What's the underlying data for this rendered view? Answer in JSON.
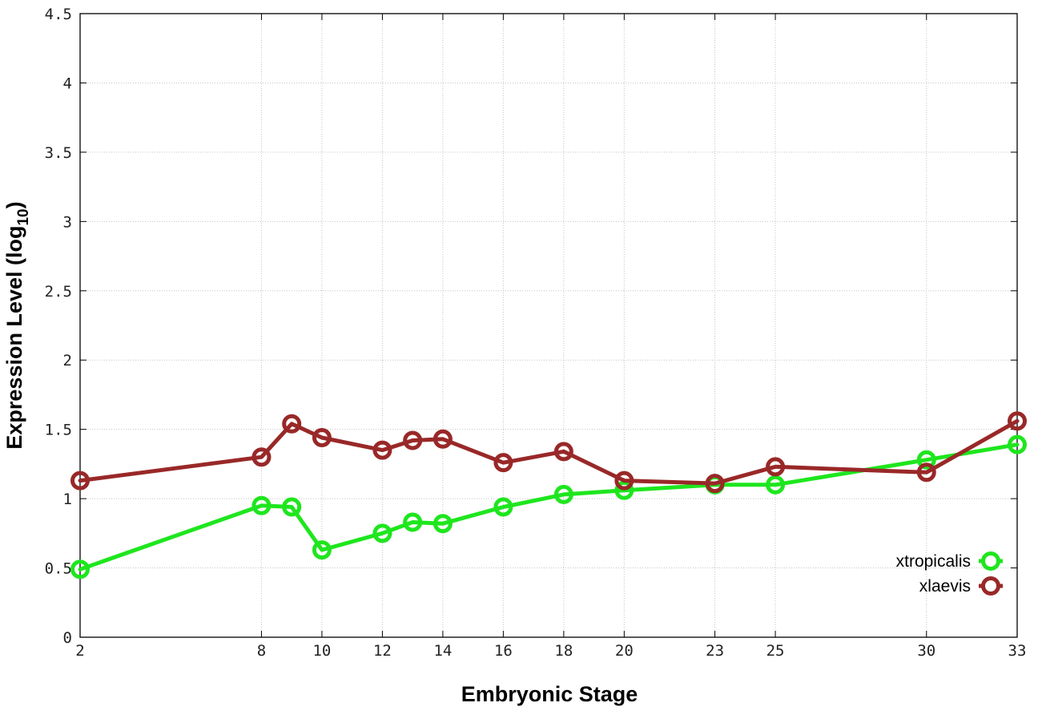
{
  "chart_data": {
    "type": "line",
    "xlabel": "Embryonic Stage",
    "ylabel": {
      "main": "Expression Level (log",
      "sub": "10",
      "close": ")"
    },
    "x_ticks": [
      2,
      8,
      10,
      12,
      14,
      16,
      18,
      20,
      23,
      25,
      30,
      33
    ],
    "x_tick_labels": [
      "2",
      "8",
      "10",
      "12",
      "14",
      "16",
      "18",
      "20",
      "23",
      "25",
      "30",
      "33"
    ],
    "y_ticks": [
      0,
      0.5,
      1,
      1.5,
      2,
      2.5,
      3,
      3.5,
      4,
      4.5
    ],
    "y_tick_labels": [
      "0",
      "0.5",
      "1",
      "1.5",
      "2",
      "2.5",
      "3",
      "3.5",
      "4",
      "4.5"
    ],
    "xlim": [
      2,
      33
    ],
    "ylim": [
      0,
      4.5
    ],
    "grid": true,
    "legend_position": "bottom-right",
    "series": [
      {
        "name": "xtropicalis",
        "color": "#1ee61e",
        "x": [
          2,
          8,
          9,
          10,
          12,
          13,
          14,
          16,
          18,
          20,
          23,
          25,
          30,
          33
        ],
        "y": [
          0.49,
          0.95,
          0.94,
          0.63,
          0.75,
          0.83,
          0.82,
          0.94,
          1.03,
          1.06,
          1.1,
          1.1,
          1.28,
          1.39
        ]
      },
      {
        "name": "xlaevis",
        "color": "#992828",
        "x": [
          2,
          8,
          9,
          10,
          12,
          13,
          14,
          16,
          18,
          20,
          23,
          25,
          30,
          33
        ],
        "y": [
          1.13,
          1.3,
          1.54,
          1.44,
          1.35,
          1.42,
          1.43,
          1.26,
          1.34,
          1.13,
          1.11,
          1.23,
          1.19,
          1.56
        ]
      }
    ]
  }
}
